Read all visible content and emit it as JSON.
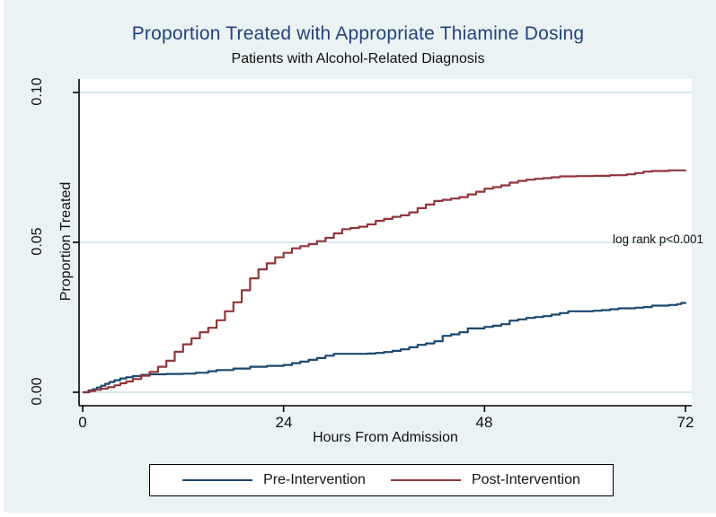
{
  "chart_data": {
    "type": "line",
    "title": "Proportion Treated with Appropriate Thiamine Dosing",
    "subtitle": "Patients with Alcohol-Related Diagnosis",
    "xlabel": "Hours From Admission",
    "ylabel": "Proportion Treated",
    "xlim": [
      0,
      72
    ],
    "ylim": [
      0,
      0.1
    ],
    "x_ticks": {
      "values": [
        0,
        24,
        48,
        72
      ],
      "labels": [
        "0",
        "24",
        "48",
        "72"
      ]
    },
    "y_ticks": {
      "values": [
        0,
        0.05,
        0.1
      ],
      "labels": [
        "0.00",
        "0.05",
        "0.10"
      ]
    },
    "grid": "horizontal gridlines at labeled y ticks",
    "legend_position": "bottom",
    "annotation": {
      "text": "log rank p<0.001",
      "x": 70,
      "y": 0.048
    },
    "colors": {
      "background": "#eaf2f3",
      "plot_background": "#ffffff",
      "gridline": "#d8e7ed",
      "axis": "#000000",
      "title": "#24437c"
    },
    "series": [
      {
        "name": "Pre-Intervention",
        "color": "#1a476f",
        "step": true,
        "points": [
          [
            0,
            0
          ],
          [
            0.7,
            0.0006
          ],
          [
            1.2,
            0.001
          ],
          [
            1.7,
            0.0016
          ],
          [
            2.2,
            0.0022
          ],
          [
            2.7,
            0.0028
          ],
          [
            3.2,
            0.0034
          ],
          [
            3.8,
            0.004
          ],
          [
            4.5,
            0.0046
          ],
          [
            5.2,
            0.005
          ],
          [
            6,
            0.0054
          ],
          [
            7,
            0.0058
          ],
          [
            8,
            0.006
          ],
          [
            10,
            0.0061
          ],
          [
            12,
            0.0062
          ],
          [
            13.5,
            0.0065
          ],
          [
            15,
            0.007
          ],
          [
            16,
            0.0074
          ],
          [
            18,
            0.0079
          ],
          [
            20,
            0.0085
          ],
          [
            22,
            0.0088
          ],
          [
            24,
            0.0091
          ],
          [
            25,
            0.0097
          ],
          [
            26,
            0.0102
          ],
          [
            27,
            0.0108
          ],
          [
            28,
            0.0114
          ],
          [
            29,
            0.0122
          ],
          [
            30,
            0.0128
          ],
          [
            34,
            0.0129
          ],
          [
            35,
            0.0131
          ],
          [
            36,
            0.0134
          ],
          [
            37,
            0.0138
          ],
          [
            38,
            0.0143
          ],
          [
            39,
            0.015
          ],
          [
            40,
            0.0158
          ],
          [
            41,
            0.0163
          ],
          [
            42,
            0.017
          ],
          [
            43,
            0.0188
          ],
          [
            44,
            0.0193
          ],
          [
            45,
            0.02
          ],
          [
            46,
            0.0213
          ],
          [
            48,
            0.0218
          ],
          [
            49,
            0.0222
          ],
          [
            50,
            0.0227
          ],
          [
            51,
            0.0239
          ],
          [
            52,
            0.0243
          ],
          [
            53,
            0.0248
          ],
          [
            54,
            0.0251
          ],
          [
            55,
            0.0254
          ],
          [
            56,
            0.0259
          ],
          [
            57,
            0.0264
          ],
          [
            58,
            0.027
          ],
          [
            61,
            0.0272
          ],
          [
            62,
            0.0274
          ],
          [
            63,
            0.0277
          ],
          [
            64,
            0.028
          ],
          [
            66,
            0.0282
          ],
          [
            67,
            0.0284
          ],
          [
            68,
            0.0289
          ],
          [
            70,
            0.0291
          ],
          [
            71,
            0.0294
          ],
          [
            71.5,
            0.0298
          ],
          [
            72,
            0.03
          ]
        ]
      },
      {
        "name": "Post-Intervention",
        "color": "#90353b",
        "step": true,
        "points": [
          [
            0,
            0
          ],
          [
            0.8,
            0.0004
          ],
          [
            1.5,
            0.0008
          ],
          [
            2.2,
            0.0012
          ],
          [
            3,
            0.0017
          ],
          [
            3.8,
            0.0023
          ],
          [
            4.5,
            0.003
          ],
          [
            5.2,
            0.0036
          ],
          [
            6,
            0.0044
          ],
          [
            7,
            0.0055
          ],
          [
            8,
            0.0068
          ],
          [
            9,
            0.0085
          ],
          [
            10,
            0.0105
          ],
          [
            11,
            0.0135
          ],
          [
            12,
            0.016
          ],
          [
            13,
            0.018
          ],
          [
            14,
            0.02
          ],
          [
            15,
            0.0215
          ],
          [
            16,
            0.024
          ],
          [
            17,
            0.027
          ],
          [
            18,
            0.03
          ],
          [
            19,
            0.034
          ],
          [
            20,
            0.038
          ],
          [
            21,
            0.041
          ],
          [
            22,
            0.043
          ],
          [
            23,
            0.045
          ],
          [
            24,
            0.0465
          ],
          [
            25,
            0.048
          ],
          [
            26,
            0.0487
          ],
          [
            27,
            0.0494
          ],
          [
            28,
            0.0504
          ],
          [
            29,
            0.0515
          ],
          [
            30,
            0.053
          ],
          [
            31,
            0.0544
          ],
          [
            32,
            0.0548
          ],
          [
            33,
            0.0552
          ],
          [
            34,
            0.056
          ],
          [
            35,
            0.0572
          ],
          [
            36,
            0.0578
          ],
          [
            37,
            0.0585
          ],
          [
            38,
            0.059
          ],
          [
            39,
            0.06
          ],
          [
            40,
            0.0614
          ],
          [
            41,
            0.0626
          ],
          [
            42,
            0.0638
          ],
          [
            43,
            0.0642
          ],
          [
            44,
            0.0646
          ],
          [
            45,
            0.0651
          ],
          [
            46,
            0.066
          ],
          [
            47,
            0.0669
          ],
          [
            48,
            0.0679
          ],
          [
            49,
            0.0684
          ],
          [
            50,
            0.069
          ],
          [
            51,
            0.0699
          ],
          [
            52,
            0.0705
          ],
          [
            53,
            0.0709
          ],
          [
            54,
            0.0712
          ],
          [
            55,
            0.0714
          ],
          [
            56,
            0.0717
          ],
          [
            57,
            0.072
          ],
          [
            59,
            0.0721
          ],
          [
            61,
            0.0722
          ],
          [
            63,
            0.0724
          ],
          [
            65,
            0.0727
          ],
          [
            66,
            0.0731
          ],
          [
            67,
            0.0736
          ],
          [
            68,
            0.0738
          ],
          [
            70,
            0.074
          ],
          [
            72,
            0.0742
          ]
        ]
      }
    ]
  }
}
